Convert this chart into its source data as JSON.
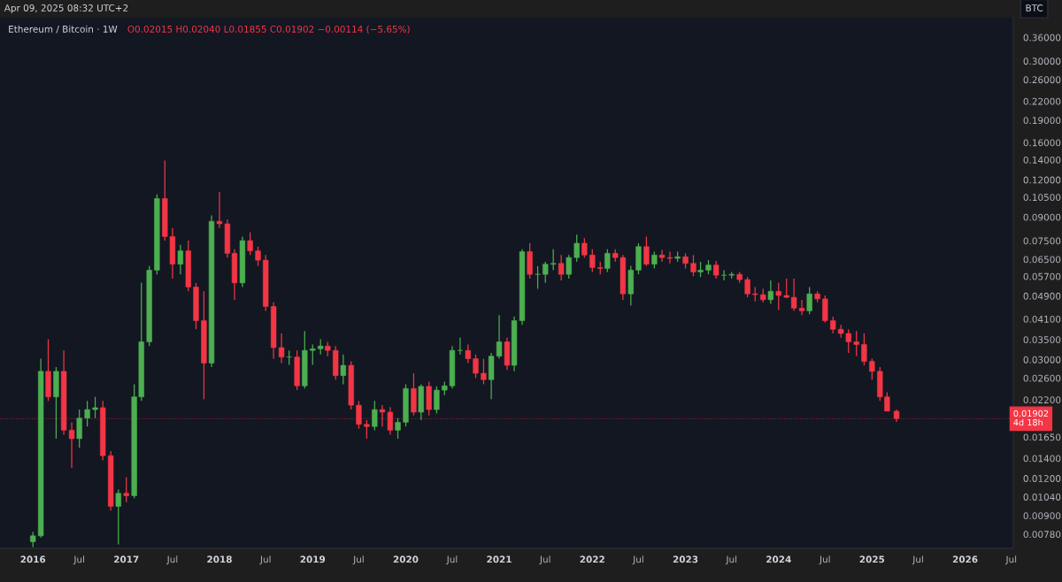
{
  "chart_data": {
    "type": "candlestick",
    "title": "Ethereum / Bitcoin · 1W",
    "subtitle": "O0.02015 H0.02040 L0.01855 C0.01902 −0.00114 (−5.65%)",
    "ylabel": "BTC",
    "annotations": [
      "Apr 09, 2025 08:32 UTC+2"
    ],
    "log": "y",
    "xlim": [
      "2015-08-25",
      "2026-07-08"
    ],
    "xticks": [
      "2016",
      {
        "value": "2016-07",
        "label": "Jul"
      },
      "2017",
      {
        "value": "2017-07",
        "label": "Jul"
      },
      "2018",
      {
        "value": "2018-07",
        "label": "Jul"
      },
      "2019",
      {
        "value": "2019-07",
        "label": "Jul"
      },
      "2020",
      {
        "value": "2020-07",
        "label": "Jul"
      },
      "2021",
      {
        "value": "2021-07",
        "label": "Jul"
      },
      "2022",
      {
        "value": "2022-07",
        "label": "Jul"
      },
      "2023",
      {
        "value": "2023-07",
        "label": "Jul"
      },
      "2024",
      {
        "value": "2024-07",
        "label": "Jul"
      },
      "2025",
      {
        "value": "2025-07",
        "label": "Jul"
      },
      "2026",
      {
        "value": "2026-07",
        "label": "Jul"
      }
    ],
    "ylim": [
      0.007,
      0.42
    ],
    "yticks": [
      {
        "value": 0.0078,
        "label": "0.00780"
      },
      {
        "value": 0.009,
        "label": "0.00900"
      },
      {
        "value": 0.0104,
        "label": "0.01040"
      },
      {
        "value": 0.012,
        "label": "0.01200"
      },
      {
        "value": 0.014,
        "label": "0.01400"
      },
      {
        "value": 0.0165,
        "label": "0.01650"
      },
      {
        "value": 0.022,
        "label": "0.02200"
      },
      {
        "value": 0.026,
        "label": "0.02600"
      },
      {
        "value": 0.03,
        "label": "0.03000"
      },
      {
        "value": 0.035,
        "label": "0.03500"
      },
      {
        "value": 0.041,
        "label": "0.04100"
      },
      {
        "value": 0.049,
        "label": "0.04900"
      },
      {
        "value": 0.057,
        "label": "0.05700"
      },
      {
        "value": 0.065,
        "label": "0.06500"
      },
      {
        "value": 0.075,
        "label": "0.07500"
      },
      {
        "value": 0.09,
        "label": "0.09000"
      },
      {
        "value": 0.105,
        "label": "0.10500"
      },
      {
        "value": 0.12,
        "label": "0.12000"
      },
      {
        "value": 0.14,
        "label": "0.14000"
      },
      {
        "value": 0.16,
        "label": "0.16000"
      },
      {
        "value": 0.19,
        "label": "0.19000"
      },
      {
        "value": 0.22,
        "label": "0.22000"
      },
      {
        "value": 0.26,
        "label": "0.26000"
      },
      {
        "value": 0.3,
        "label": "0.30000"
      },
      {
        "value": 0.36,
        "label": "0.36000"
      }
    ],
    "ref_lines": [
      {
        "axis": "y",
        "value": 0.01902,
        "label": "0.01902\n4d 18h",
        "color": "#f23645",
        "line_style": "dotted"
      }
    ],
    "x": [
      "2016-01",
      "2016-02",
      "2016-03",
      "2016-04",
      "2016-05",
      "2016-06",
      "2016-07",
      "2016-08",
      "2016-09",
      "2016-10",
      "2016-11",
      "2016-12",
      "2017-01",
      "2017-02",
      "2017-03",
      "2017-04",
      "2017-05",
      "2017-06",
      "2017-07",
      "2017-08",
      "2017-09",
      "2017-10",
      "2017-11",
      "2017-12",
      "2018-01",
      "2018-02",
      "2018-03",
      "2018-04",
      "2018-05",
      "2018-06",
      "2018-07",
      "2018-08",
      "2018-09",
      "2018-10",
      "2018-11",
      "2018-12",
      "2019-01",
      "2019-02",
      "2019-03",
      "2019-04",
      "2019-05",
      "2019-06",
      "2019-07",
      "2019-08",
      "2019-09",
      "2019-10",
      "2019-11",
      "2019-12",
      "2020-01",
      "2020-02",
      "2020-03",
      "2020-04",
      "2020-05",
      "2020-06",
      "2020-07",
      "2020-08",
      "2020-09",
      "2020-10",
      "2020-11",
      "2020-12",
      "2021-01",
      "2021-02",
      "2021-03",
      "2021-04",
      "2021-05",
      "2021-06",
      "2021-07",
      "2021-08",
      "2021-09",
      "2021-10",
      "2021-11",
      "2021-12",
      "2022-01",
      "2022-02",
      "2022-03",
      "2022-04",
      "2022-05",
      "2022-06",
      "2022-07",
      "2022-08",
      "2022-09",
      "2022-10",
      "2022-11",
      "2022-12",
      "2023-01",
      "2023-02",
      "2023-03",
      "2023-04",
      "2023-05",
      "2023-06",
      "2023-07",
      "2023-08",
      "2023-09",
      "2023-10",
      "2023-11",
      "2023-12",
      "2024-01",
      "2024-02",
      "2024-03",
      "2024-04",
      "2024-05",
      "2024-06",
      "2024-07",
      "2024-08",
      "2024-09",
      "2024-10",
      "2024-11",
      "2024-12",
      "2025-01",
      "2025-02",
      "2025-03",
      "2025-04-07"
    ],
    "ohlc": [
      [
        0.00736,
        0.00795,
        0.00707,
        0.0077
      ],
      [
        0.0077,
        0.0302,
        0.0076,
        0.0274
      ],
      [
        0.0274,
        0.0351,
        0.0218,
        0.0225
      ],
      [
        0.0225,
        0.0283,
        0.0163,
        0.0274
      ],
      [
        0.0274,
        0.0322,
        0.0168,
        0.0174
      ],
      [
        0.0174,
        0.0185,
        0.013,
        0.0163
      ],
      [
        0.0163,
        0.0204,
        0.0152,
        0.0191
      ],
      [
        0.0191,
        0.0218,
        0.0179,
        0.0204
      ],
      [
        0.0204,
        0.0225,
        0.0191,
        0.0207
      ],
      [
        0.0207,
        0.0218,
        0.0138,
        0.0143
      ],
      [
        0.0143,
        0.0148,
        0.00936,
        0.00967
      ],
      [
        0.00967,
        0.011,
        0.00721,
        0.0107
      ],
      [
        0.0107,
        0.0121,
        0.00999,
        0.0105
      ],
      [
        0.0105,
        0.0248,
        0.0103,
        0.0225
      ],
      [
        0.0225,
        0.0542,
        0.0218,
        0.0344
      ],
      [
        0.0344,
        0.0617,
        0.0333,
        0.0598
      ],
      [
        0.0598,
        0.1073,
        0.0579,
        0.1039
      ],
      [
        0.1039,
        0.1393,
        0.0751,
        0.0775
      ],
      [
        0.0775,
        0.0828,
        0.056,
        0.0626
      ],
      [
        0.0626,
        0.0727,
        0.0579,
        0.0694
      ],
      [
        0.0694,
        0.0751,
        0.0508,
        0.0525
      ],
      [
        0.0525,
        0.0542,
        0.0379,
        0.0405
      ],
      [
        0.0405,
        0.0508,
        0.0221,
        0.0292
      ],
      [
        0.0292,
        0.0912,
        0.0283,
        0.0872
      ],
      [
        0.0872,
        0.1094,
        0.0828,
        0.0855
      ],
      [
        0.0855,
        0.0883,
        0.0659,
        0.0681
      ],
      [
        0.0681,
        0.0703,
        0.0476,
        0.0542
      ],
      [
        0.0542,
        0.0775,
        0.0525,
        0.0751
      ],
      [
        0.0751,
        0.0801,
        0.0672,
        0.0694
      ],
      [
        0.0694,
        0.0717,
        0.0618,
        0.0646
      ],
      [
        0.0646,
        0.0672,
        0.0437,
        0.0452
      ],
      [
        0.0452,
        0.0467,
        0.0302,
        0.0329
      ],
      [
        0.0329,
        0.0367,
        0.0292,
        0.0306
      ],
      [
        0.0306,
        0.0322,
        0.0288,
        0.0306
      ],
      [
        0.0306,
        0.0322,
        0.0237,
        0.0245
      ],
      [
        0.0245,
        0.0374,
        0.024,
        0.0322
      ],
      [
        0.0322,
        0.0337,
        0.0288,
        0.0326
      ],
      [
        0.0326,
        0.0351,
        0.0312,
        0.0333
      ],
      [
        0.0333,
        0.0344,
        0.0308,
        0.0322
      ],
      [
        0.0322,
        0.0333,
        0.0257,
        0.0265
      ],
      [
        0.0265,
        0.0312,
        0.0248,
        0.0287
      ],
      [
        0.0287,
        0.0296,
        0.0204,
        0.0211
      ],
      [
        0.0211,
        0.0218,
        0.0176,
        0.0182
      ],
      [
        0.0182,
        0.0188,
        0.0163,
        0.0179
      ],
      [
        0.0179,
        0.0218,
        0.0174,
        0.0204
      ],
      [
        0.0204,
        0.0211,
        0.0179,
        0.02
      ],
      [
        0.02,
        0.0208,
        0.0168,
        0.0174
      ],
      [
        0.0174,
        0.0191,
        0.0163,
        0.0185
      ],
      [
        0.0185,
        0.0248,
        0.0179,
        0.024
      ],
      [
        0.024,
        0.027,
        0.0195,
        0.02
      ],
      [
        0.02,
        0.0248,
        0.0188,
        0.0244
      ],
      [
        0.0244,
        0.0253,
        0.0195,
        0.0204
      ],
      [
        0.0204,
        0.0244,
        0.0198,
        0.0237
      ],
      [
        0.0237,
        0.0253,
        0.0228,
        0.0245
      ],
      [
        0.0245,
        0.0333,
        0.024,
        0.0322
      ],
      [
        0.0322,
        0.0355,
        0.0312,
        0.0322
      ],
      [
        0.0322,
        0.0337,
        0.0292,
        0.0302
      ],
      [
        0.0302,
        0.0312,
        0.026,
        0.027
      ],
      [
        0.027,
        0.0302,
        0.0248,
        0.0257
      ],
      [
        0.0257,
        0.0316,
        0.0221,
        0.0308
      ],
      [
        0.0308,
        0.0423,
        0.0302,
        0.0344
      ],
      [
        0.0344,
        0.0355,
        0.0277,
        0.0287
      ],
      [
        0.0287,
        0.0418,
        0.0274,
        0.0405
      ],
      [
        0.0405,
        0.0703,
        0.0392,
        0.069
      ],
      [
        0.069,
        0.0736,
        0.056,
        0.0579
      ],
      [
        0.0579,
        0.0617,
        0.0518,
        0.0579
      ],
      [
        0.0579,
        0.0638,
        0.0542,
        0.0626
      ],
      [
        0.0626,
        0.0703,
        0.0598,
        0.063
      ],
      [
        0.063,
        0.0672,
        0.0553,
        0.0579
      ],
      [
        0.0579,
        0.0672,
        0.056,
        0.0659
      ],
      [
        0.0659,
        0.0786,
        0.0638,
        0.0736
      ],
      [
        0.0736,
        0.0765,
        0.0659,
        0.0672
      ],
      [
        0.0672,
        0.0703,
        0.059,
        0.061
      ],
      [
        0.061,
        0.0638,
        0.0579,
        0.0606
      ],
      [
        0.0606,
        0.0703,
        0.059,
        0.0681
      ],
      [
        0.0681,
        0.0703,
        0.0638,
        0.0659
      ],
      [
        0.0659,
        0.0672,
        0.0476,
        0.0498
      ],
      [
        0.0498,
        0.0618,
        0.0455,
        0.0598
      ],
      [
        0.0598,
        0.0736,
        0.0579,
        0.0717
      ],
      [
        0.0717,
        0.0775,
        0.0618,
        0.0626
      ],
      [
        0.0626,
        0.069,
        0.0606,
        0.0672
      ],
      [
        0.0672,
        0.0699,
        0.0638,
        0.0659
      ],
      [
        0.0659,
        0.069,
        0.063,
        0.0655
      ],
      [
        0.0655,
        0.069,
        0.0638,
        0.0663
      ],
      [
        0.0663,
        0.0681,
        0.0606,
        0.063
      ],
      [
        0.063,
        0.0672,
        0.0571,
        0.059
      ],
      [
        0.059,
        0.0638,
        0.0567,
        0.0598
      ],
      [
        0.0598,
        0.0646,
        0.0579,
        0.0622
      ],
      [
        0.0622,
        0.0642,
        0.056,
        0.0575
      ],
      [
        0.0575,
        0.0598,
        0.0553,
        0.0575
      ],
      [
        0.0575,
        0.059,
        0.056,
        0.0579
      ],
      [
        0.0579,
        0.059,
        0.0542,
        0.0556
      ],
      [
        0.0556,
        0.0567,
        0.0485,
        0.0498
      ],
      [
        0.0498,
        0.0525,
        0.047,
        0.0495
      ],
      [
        0.0495,
        0.0518,
        0.0467,
        0.0476
      ],
      [
        0.0476,
        0.0553,
        0.0461,
        0.0508
      ],
      [
        0.0508,
        0.0542,
        0.044,
        0.0492
      ],
      [
        0.0492,
        0.056,
        0.0482,
        0.0485
      ],
      [
        0.0485,
        0.056,
        0.0437,
        0.0446
      ],
      [
        0.0446,
        0.0476,
        0.0423,
        0.0437
      ],
      [
        0.0437,
        0.0525,
        0.0426,
        0.0498
      ],
      [
        0.0498,
        0.0508,
        0.0467,
        0.0479
      ],
      [
        0.0479,
        0.0492,
        0.0399,
        0.0405
      ],
      [
        0.0405,
        0.0418,
        0.0367,
        0.0379
      ],
      [
        0.0379,
        0.0392,
        0.0355,
        0.0367
      ],
      [
        0.0367,
        0.0379,
        0.0316,
        0.0344
      ],
      [
        0.0344,
        0.0374,
        0.0308,
        0.0337
      ],
      [
        0.0337,
        0.0367,
        0.0287,
        0.0296
      ],
      [
        0.0296,
        0.0302,
        0.0257,
        0.0274
      ],
      [
        0.0274,
        0.0283,
        0.0218,
        0.0225
      ],
      [
        0.0225,
        0.0233,
        0.02015,
        0.02015
      ],
      [
        0.02015,
        0.0204,
        0.01855,
        0.01902
      ]
    ],
    "colors": [
      "#4caf50",
      "#4caf50",
      "#f23645",
      "#4caf50",
      "#f23645",
      "#f23645",
      "#4caf50",
      "#4caf50",
      "#4caf50",
      "#f23645",
      "#f23645",
      "#4caf50",
      "#f23645",
      "#4caf50",
      "#4caf50",
      "#4caf50",
      "#4caf50",
      "#f23645",
      "#f23645",
      "#4caf50",
      "#f23645",
      "#f23645",
      "#f23645",
      "#4caf50",
      "#f23645",
      "#f23645",
      "#f23645",
      "#4caf50",
      "#f23645",
      "#f23645",
      "#f23645",
      "#f23645",
      "#f23645",
      "#4caf50",
      "#f23645",
      "#4caf50",
      "#4caf50",
      "#4caf50",
      "#f23645",
      "#f23645",
      "#4caf50",
      "#f23645",
      "#f23645",
      "#f23645",
      "#4caf50",
      "#f23645",
      "#f23645",
      "#4caf50",
      "#4caf50",
      "#f23645",
      "#4caf50",
      "#f23645",
      "#4caf50",
      "#4caf50",
      "#4caf50",
      "#4caf50",
      "#f23645",
      "#f23645",
      "#f23645",
      "#4caf50",
      "#4caf50",
      "#f23645",
      "#4caf50",
      "#4caf50",
      "#f23645",
      "#4caf50",
      "#4caf50",
      "#4caf50",
      "#f23645",
      "#4caf50",
      "#4caf50",
      "#f23645",
      "#f23645",
      "#f23645",
      "#4caf50",
      "#f23645",
      "#f23645",
      "#4caf50",
      "#4caf50",
      "#f23645",
      "#4caf50",
      "#f23645",
      "#f23645",
      "#4caf50",
      "#f23645",
      "#f23645",
      "#4caf50",
      "#4caf50",
      "#f23645",
      "#4caf50",
      "#4caf50",
      "#f23645",
      "#f23645",
      "#f23645",
      "#f23645",
      "#4caf50",
      "#f23645",
      "#f23645",
      "#f23645",
      "#f23645",
      "#4caf50",
      "#f23645",
      "#f23645",
      "#f23645",
      "#f23645",
      "#f23645",
      "#f23645",
      "#f23645",
      "#f23645",
      "#f23645",
      "#f23645",
      "#f23645"
    ]
  }
}
